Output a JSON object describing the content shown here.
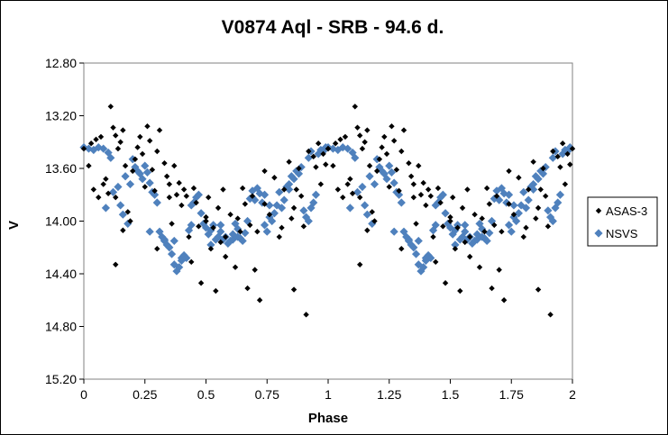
{
  "chart_data": {
    "type": "scatter",
    "title": "V0874 Aql - SRB - 94.6 d.",
    "xlabel": "Phase",
    "ylabel": "V",
    "xlim": [
      0,
      2
    ],
    "ylim": [
      12.8,
      15.2
    ],
    "y_inverted": true,
    "x_ticks": [
      0,
      0.25,
      0.5,
      0.75,
      1,
      1.25,
      1.5,
      1.75,
      2
    ],
    "x_tick_labels": [
      "0",
      "0.25",
      "0.5",
      "0.75",
      "1",
      "1.25",
      "1.5",
      "1.75",
      "2"
    ],
    "y_ticks": [
      12.8,
      13.2,
      13.6,
      14.0,
      14.4,
      14.8,
      15.2
    ],
    "y_tick_labels": [
      "12.80",
      "13.20",
      "13.60",
      "14.00",
      "14.40",
      "14.80",
      "15.20"
    ],
    "grid": false,
    "plot_background": "#ffffff",
    "legend_position": "right",
    "phase_period": 1,
    "series": [
      {
        "name": "ASAS-3",
        "color": "#000000",
        "marker": "diamond",
        "points": [
          [
            0.0,
            13.45
          ],
          [
            0.03,
            13.41
          ],
          [
            0.05,
            13.38
          ],
          [
            0.07,
            13.36
          ],
          [
            0.02,
            13.58
          ],
          [
            0.04,
            13.76
          ],
          [
            0.06,
            13.82
          ],
          [
            0.09,
            13.68
          ],
          [
            0.1,
            13.79
          ],
          [
            0.11,
            13.13
          ],
          [
            0.12,
            13.29
          ],
          [
            0.13,
            13.35
          ],
          [
            0.14,
            13.45
          ],
          [
            0.15,
            13.4
          ],
          [
            0.16,
            13.31
          ],
          [
            0.17,
            13.58
          ],
          [
            0.13,
            13.82
          ],
          [
            0.16,
            14.07
          ],
          [
            0.18,
            13.93
          ],
          [
            0.2,
            13.62
          ],
          [
            0.21,
            13.53
          ],
          [
            0.22,
            13.44
          ],
          [
            0.23,
            13.36
          ],
          [
            0.24,
            13.49
          ],
          [
            0.25,
            13.74
          ],
          [
            0.26,
            13.28
          ],
          [
            0.27,
            13.39
          ],
          [
            0.28,
            13.61
          ],
          [
            0.29,
            13.77
          ],
          [
            0.3,
            13.47
          ],
          [
            0.31,
            13.31
          ],
          [
            0.33,
            13.56
          ],
          [
            0.34,
            13.66
          ],
          [
            0.35,
            13.82
          ],
          [
            0.36,
            14.02
          ],
          [
            0.37,
            13.58
          ],
          [
            0.38,
            13.8
          ],
          [
            0.39,
            13.71
          ],
          [
            0.4,
            13.88
          ],
          [
            0.41,
            13.76
          ],
          [
            0.42,
            13.81
          ],
          [
            0.43,
            14.12
          ],
          [
            0.44,
            14.31
          ],
          [
            0.45,
            13.75
          ],
          [
            0.46,
            13.86
          ],
          [
            0.47,
            14.04
          ],
          [
            0.48,
            14.47
          ],
          [
            0.5,
            13.97
          ],
          [
            0.51,
            13.82
          ],
          [
            0.52,
            14.21
          ],
          [
            0.53,
            14.05
          ],
          [
            0.54,
            14.53
          ],
          [
            0.55,
            13.9
          ],
          [
            0.56,
            14.16
          ],
          [
            0.57,
            13.76
          ],
          [
            0.58,
            14.27
          ],
          [
            0.6,
            13.95
          ],
          [
            0.62,
            14.35
          ],
          [
            0.64,
            14.08
          ],
          [
            0.65,
            13.75
          ],
          [
            0.66,
            13.87
          ],
          [
            0.67,
            14.51
          ],
          [
            0.68,
            14.03
          ],
          [
            0.69,
            13.81
          ],
          [
            0.7,
            14.37
          ],
          [
            0.71,
            14.08
          ],
          [
            0.72,
            14.6
          ],
          [
            0.74,
            13.87
          ],
          [
            0.76,
            13.95
          ],
          [
            0.78,
            13.67
          ],
          [
            0.8,
            14.12
          ],
          [
            0.82,
            13.76
          ],
          [
            0.84,
            13.55
          ],
          [
            0.85,
            13.98
          ],
          [
            0.86,
            14.52
          ],
          [
            0.87,
            13.76
          ],
          [
            0.88,
            13.6
          ],
          [
            0.9,
            14.04
          ],
          [
            0.91,
            14.71
          ],
          [
            0.92,
            13.47
          ],
          [
            0.94,
            13.51
          ],
          [
            0.95,
            13.59
          ],
          [
            0.96,
            13.41
          ],
          [
            0.97,
            13.72
          ],
          [
            0.98,
            13.49
          ],
          [
            0.99,
            13.57
          ],
          [
            1.0,
            13.45
          ],
          [
            0.13,
            14.33
          ],
          [
            0.86,
            13.9
          ],
          [
            0.3,
            14.21
          ],
          [
            0.89,
            13.81
          ],
          [
            0.74,
            13.62
          ],
          [
            0.5,
            14.0
          ],
          [
            0.35,
            13.72
          ],
          [
            0.19,
            14.0
          ],
          [
            0.58,
            14.12
          ],
          [
            0.08,
            13.72
          ],
          [
            0.63,
            13.98
          ],
          [
            0.81,
            14.05
          ]
        ]
      },
      {
        "name": "NSVS",
        "color": "#4f81bd",
        "marker": "diamond",
        "points": [
          [
            0.0,
            13.44
          ],
          [
            0.02,
            13.45
          ],
          [
            0.04,
            13.46
          ],
          [
            0.06,
            13.44
          ],
          [
            0.08,
            13.45
          ],
          [
            0.09,
            13.9
          ],
          [
            0.12,
            13.78
          ],
          [
            0.14,
            13.74
          ],
          [
            0.15,
            13.88
          ],
          [
            0.16,
            13.95
          ],
          [
            0.17,
            13.66
          ],
          [
            0.19,
            13.72
          ],
          [
            0.2,
            13.53
          ],
          [
            0.21,
            13.59
          ],
          [
            0.22,
            13.62
          ],
          [
            0.23,
            13.64
          ],
          [
            0.24,
            13.68
          ],
          [
            0.25,
            13.58
          ],
          [
            0.26,
            13.63
          ],
          [
            0.27,
            13.71
          ],
          [
            0.28,
            13.78
          ],
          [
            0.29,
            13.8
          ],
          [
            0.3,
            13.86
          ],
          [
            0.31,
            14.08
          ],
          [
            0.32,
            14.12
          ],
          [
            0.33,
            14.14
          ],
          [
            0.34,
            14.18
          ],
          [
            0.35,
            14.2
          ],
          [
            0.36,
            14.25
          ],
          [
            0.37,
            14.33
          ],
          [
            0.38,
            14.38
          ],
          [
            0.39,
            14.35
          ],
          [
            0.4,
            14.3
          ],
          [
            0.41,
            14.26
          ],
          [
            0.42,
            14.28
          ],
          [
            0.43,
            14.07
          ],
          [
            0.44,
            14.03
          ],
          [
            0.45,
            13.86
          ],
          [
            0.46,
            13.82
          ],
          [
            0.47,
            13.8
          ],
          [
            0.48,
            13.94
          ],
          [
            0.49,
            14.02
          ],
          [
            0.5,
            14.05
          ],
          [
            0.51,
            14.1
          ],
          [
            0.52,
            14.07
          ],
          [
            0.53,
            14.03
          ],
          [
            0.54,
            14.14
          ],
          [
            0.55,
            14.12
          ],
          [
            0.56,
            14.08
          ],
          [
            0.57,
            14.14
          ],
          [
            0.58,
            14.12
          ],
          [
            0.59,
            14.17
          ],
          [
            0.6,
            14.15
          ],
          [
            0.61,
            14.1
          ],
          [
            0.62,
            14.02
          ],
          [
            0.63,
            14.06
          ],
          [
            0.64,
            14.13
          ],
          [
            0.65,
            14.15
          ],
          [
            0.66,
            14.09
          ],
          [
            0.67,
            14.0
          ],
          [
            0.68,
            13.83
          ],
          [
            0.69,
            13.77
          ],
          [
            0.7,
            13.84
          ],
          [
            0.71,
            13.75
          ],
          [
            0.72,
            13.79
          ],
          [
            0.73,
            13.86
          ],
          [
            0.74,
            14.03
          ],
          [
            0.75,
            14.08
          ],
          [
            0.76,
            13.97
          ],
          [
            0.77,
            14.0
          ],
          [
            0.78,
            13.94
          ],
          [
            0.79,
            13.88
          ],
          [
            0.8,
            13.78
          ],
          [
            0.81,
            13.9
          ],
          [
            0.82,
            13.84
          ],
          [
            0.83,
            13.74
          ],
          [
            0.84,
            13.72
          ],
          [
            0.85,
            13.66
          ],
          [
            0.86,
            13.68
          ],
          [
            0.87,
            13.62
          ],
          [
            0.88,
            13.64
          ],
          [
            0.89,
            13.59
          ],
          [
            0.9,
            13.92
          ],
          [
            0.91,
            13.97
          ],
          [
            0.92,
            14.0
          ],
          [
            0.93,
            13.9
          ],
          [
            0.94,
            13.86
          ],
          [
            0.95,
            13.8
          ],
          [
            0.96,
            13.49
          ],
          [
            0.97,
            13.46
          ],
          [
            0.98,
            13.47
          ],
          [
            0.99,
            13.44
          ],
          [
            0.1,
            13.48
          ],
          [
            0.11,
            13.52
          ],
          [
            0.18,
            14.02
          ],
          [
            0.37,
            14.15
          ],
          [
            0.4,
            14.28
          ],
          [
            0.44,
            13.88
          ],
          [
            0.52,
            14.18
          ],
          [
            0.61,
            14.14
          ],
          [
            0.69,
            13.82
          ],
          [
            0.76,
            13.88
          ],
          [
            0.84,
            13.76
          ],
          [
            0.92,
            13.52
          ],
          [
            0.93,
            13.47
          ],
          [
            0.27,
            14.08
          ],
          [
            0.33,
            14.15
          ],
          [
            0.56,
            14.03
          ],
          [
            0.63,
            14.12
          ],
          [
            0.74,
            13.8
          ]
        ]
      }
    ]
  }
}
